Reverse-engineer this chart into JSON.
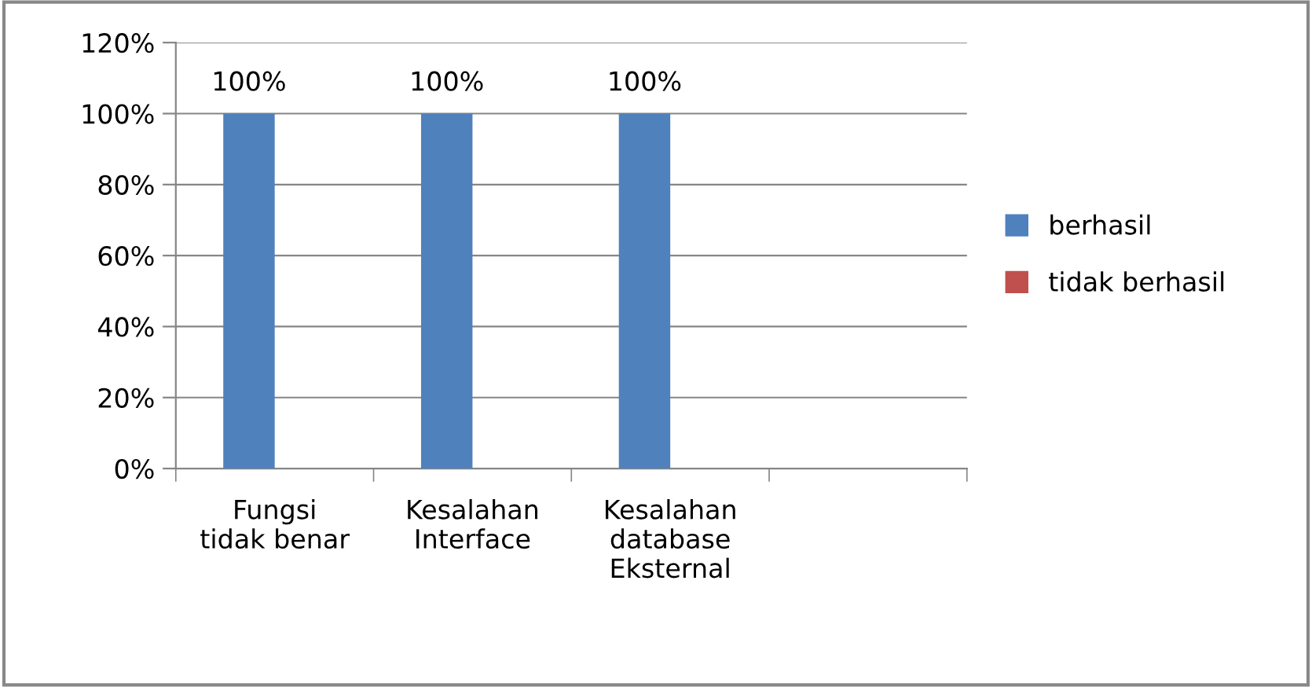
{
  "chart_data": {
    "type": "bar",
    "categories": [
      "Fungsi\ntidak benar",
      "Kesalahan\nInterface",
      "Kesalahan\ndatabase\nEksternal",
      null
    ],
    "series": [
      {
        "name": "berhasil",
        "color": "#4f81bd",
        "values": [
          100,
          100,
          100,
          null
        ],
        "value_labels": [
          "100%",
          "100%",
          "100%",
          null
        ]
      },
      {
        "name": "tidak berhasil",
        "color": "#c0504d",
        "values": [
          null,
          null,
          null,
          null
        ]
      }
    ],
    "ylim": [
      0,
      120
    ],
    "yticks": [
      {
        "value": 0,
        "label": "0%"
      },
      {
        "value": 20,
        "label": "20%"
      },
      {
        "value": 40,
        "label": "40%"
      },
      {
        "value": 60,
        "label": "60%"
      },
      {
        "value": 80,
        "label": "80%"
      },
      {
        "value": 100,
        "label": "100%"
      },
      {
        "value": 120,
        "label": "120%"
      }
    ],
    "grid": "y",
    "legend": "right"
  }
}
